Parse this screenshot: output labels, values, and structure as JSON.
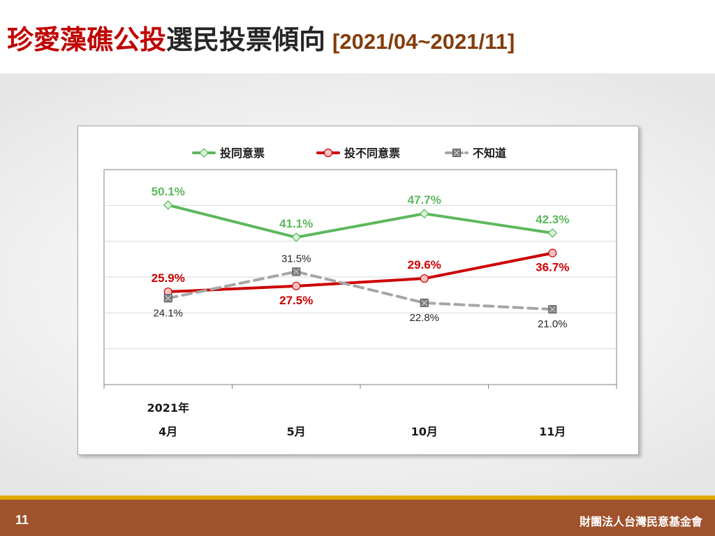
{
  "header": {
    "title_part1": "珍愛藻礁公投",
    "title_part2": "選民投票傾向",
    "date_range": "[2021/04~2021/11]"
  },
  "footer": {
    "page_number": "11",
    "organization": "財團法人台灣民意基金會"
  },
  "colors": {
    "agree": "#5cb85c",
    "disagree": "#cc0000",
    "unknown": "#a6a6a6",
    "title_red": "#c00000",
    "footer_bg": "#a0522d",
    "footer_stripe": "#e0a800"
  },
  "chart_data": {
    "type": "line",
    "year_label": "2021年",
    "categories": [
      "4月",
      "5月",
      "10月",
      "11月"
    ],
    "ylim": [
      0,
      60
    ],
    "grid": true,
    "legend_position": "top",
    "series": [
      {
        "name": "投同意票",
        "values": [
          50.1,
          41.1,
          47.7,
          42.3
        ],
        "labels": [
          "50.1%",
          "41.1%",
          "47.7%",
          "42.3%"
        ],
        "color": "#5cb85c",
        "marker": "diamond",
        "dashed": false
      },
      {
        "name": "投不同意票",
        "values": [
          25.9,
          27.5,
          29.6,
          36.7
        ],
        "labels": [
          "25.9%",
          "27.5%",
          "29.6%",
          "36.7%"
        ],
        "color": "#cc0000",
        "marker": "circle",
        "dashed": false
      },
      {
        "name": "不知道",
        "values": [
          24.1,
          31.5,
          22.8,
          21.0
        ],
        "labels": [
          "24.1%",
          "31.5%",
          "22.8%",
          "21.0%"
        ],
        "color": "#a6a6a6",
        "marker": "square-x",
        "dashed": true
      }
    ]
  }
}
